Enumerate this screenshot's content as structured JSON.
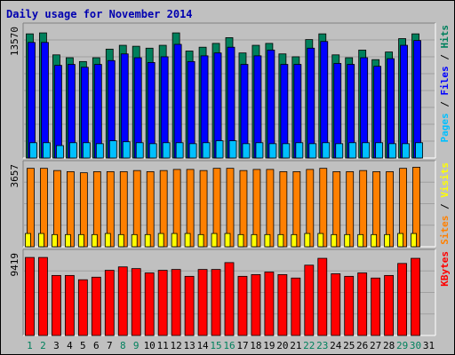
{
  "title": "Daily usage for November 2014",
  "colors": {
    "background": "#C0C0C0",
    "hits": "#00805C",
    "files": "#0000FF",
    "pages": "#00C0FF",
    "visits": "#FFFF00",
    "sites": "#FF8000",
    "kbytes": "#FF0000",
    "weekend_day_label": "#00805C",
    "weekday_label": "#000000"
  },
  "panels": [
    {
      "id": "hits-files-pages",
      "y_max_label": "13570",
      "legend": [
        {
          "text": "Pages",
          "color": "#00C0FF"
        },
        {
          "text": " / ",
          "color": "#000000"
        },
        {
          "text": "Files",
          "color": "#0000FF"
        },
        {
          "text": " / ",
          "color": "#000000"
        },
        {
          "text": "Hits",
          "color": "#00805C"
        }
      ]
    },
    {
      "id": "sites-visits",
      "y_max_label": "3657",
      "legend": [
        {
          "text": "Sites",
          "color": "#FF8000"
        },
        {
          "text": " / ",
          "color": "#000000"
        },
        {
          "text": "Visits",
          "color": "#FFFF00"
        }
      ]
    },
    {
      "id": "kbytes",
      "y_max_label": "9419",
      "legend": [
        {
          "text": "KBytes",
          "color": "#FF0000"
        }
      ]
    }
  ],
  "chart_data": {
    "type": "bar",
    "categories": [
      "1",
      "2",
      "3",
      "4",
      "5",
      "6",
      "7",
      "8",
      "9",
      "10",
      "11",
      "12",
      "13",
      "14",
      "15",
      "16",
      "17",
      "18",
      "19",
      "20",
      "21",
      "22",
      "23",
      "24",
      "25",
      "26",
      "27",
      "28",
      "29",
      "30",
      "31"
    ],
    "weekend_days": [
      1,
      2,
      8,
      9,
      15,
      16,
      22,
      23,
      29,
      30
    ],
    "series": [
      {
        "name": "Hits",
        "panel": 0,
        "ymax": 13570,
        "values": [
          13000,
          13100,
          10800,
          10500,
          10100,
          10500,
          11400,
          11800,
          11700,
          11500,
          11800,
          13100,
          11200,
          11600,
          12000,
          12600,
          11000,
          11800,
          12000,
          10900,
          10600,
          12400,
          13000,
          10800,
          10500,
          11300,
          10300,
          11100,
          12500,
          13000,
          null
        ]
      },
      {
        "name": "Files",
        "panel": 0,
        "ymax": 13570,
        "values": [
          12100,
          12100,
          9700,
          9800,
          9500,
          9800,
          10200,
          10900,
          10500,
          10000,
          10600,
          11900,
          10100,
          10700,
          11000,
          11600,
          9800,
          10700,
          11300,
          9800,
          9800,
          11500,
          12200,
          9900,
          9800,
          10500,
          9600,
          10400,
          11800,
          12300,
          null
        ]
      },
      {
        "name": "Pages",
        "panel": 0,
        "ymax": 13570,
        "values": [
          1600,
          1600,
          1300,
          1600,
          1600,
          1500,
          1800,
          1700,
          1600,
          1500,
          1600,
          1600,
          1500,
          1600,
          1800,
          1800,
          1500,
          1600,
          1500,
          1500,
          1600,
          1500,
          1600,
          1500,
          1600,
          1600,
          1600,
          1500,
          1500,
          1600,
          null
        ]
      },
      {
        "name": "Sites",
        "panel": 1,
        "ymax": 3657,
        "values": [
          3550,
          3550,
          3450,
          3400,
          3350,
          3400,
          3400,
          3400,
          3450,
          3400,
          3450,
          3500,
          3500,
          3450,
          3550,
          3550,
          3450,
          3500,
          3500,
          3400,
          3400,
          3500,
          3550,
          3400,
          3400,
          3450,
          3400,
          3400,
          3550,
          3600,
          null
        ]
      },
      {
        "name": "Visits",
        "panel": 1,
        "ymax": 3657,
        "values": [
          600,
          600,
          550,
          550,
          550,
          550,
          600,
          550,
          550,
          550,
          600,
          600,
          600,
          550,
          600,
          600,
          550,
          550,
          550,
          550,
          550,
          600,
          600,
          550,
          550,
          550,
          550,
          550,
          600,
          600,
          null
        ]
      },
      {
        "name": "KBytes",
        "panel": 2,
        "ymax": 9419,
        "values": [
          9100,
          9100,
          7000,
          7000,
          6500,
          6800,
          7600,
          8000,
          7800,
          7300,
          7600,
          7700,
          6900,
          7700,
          7700,
          8500,
          6900,
          7100,
          7400,
          7100,
          6700,
          8200,
          9000,
          7200,
          6900,
          7300,
          6700,
          7000,
          8400,
          9000,
          null
        ]
      }
    ],
    "ylim": [
      [
        0,
        13570
      ],
      [
        0,
        3657
      ],
      [
        0,
        9419
      ]
    ],
    "grid": true
  }
}
